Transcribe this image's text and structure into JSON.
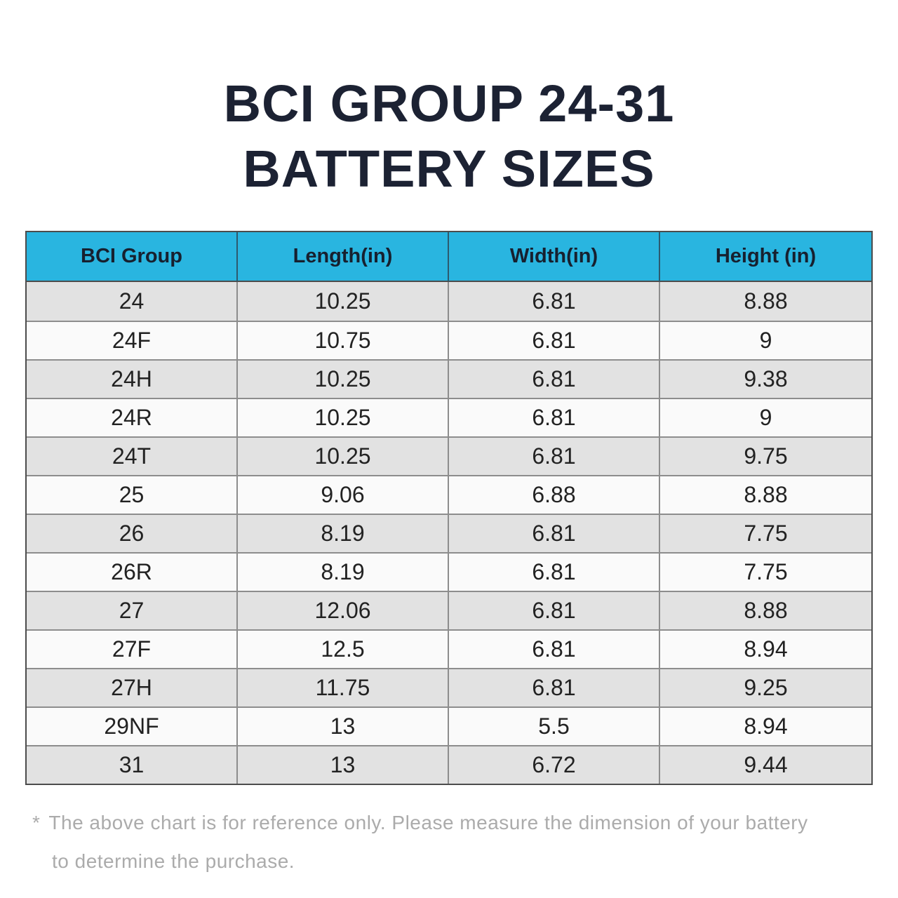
{
  "title": {
    "line1": "BCI GROUP 24-31",
    "line2": "BATTERY SIZES"
  },
  "chart_data": {
    "type": "table",
    "title": "BCI GROUP 24-31 BATTERY SIZES",
    "columns": [
      "BCI Group",
      "Length(in)",
      "Width(in)",
      "Height (in)"
    ],
    "rows": [
      [
        "24",
        10.25,
        6.81,
        8.88
      ],
      [
        "24F",
        10.75,
        6.81,
        9
      ],
      [
        "24H",
        10.25,
        6.81,
        9.38
      ],
      [
        "24R",
        10.25,
        6.81,
        9
      ],
      [
        "24T",
        10.25,
        6.81,
        9.75
      ],
      [
        "25",
        9.06,
        6.88,
        8.88
      ],
      [
        "26",
        8.19,
        6.81,
        7.75
      ],
      [
        "26R",
        8.19,
        6.81,
        7.75
      ],
      [
        "27",
        12.06,
        6.81,
        8.88
      ],
      [
        "27F",
        12.5,
        6.81,
        8.94
      ],
      [
        "27H",
        11.75,
        6.81,
        9.25
      ],
      [
        "29NF",
        13,
        5.5,
        8.94
      ],
      [
        "31",
        13,
        6.72,
        9.44
      ]
    ],
    "layout": {
      "striped_rows": true,
      "header_position": "top"
    }
  },
  "footnote": {
    "marker": "*",
    "line1": "The above chart is for reference only. Please measure the dimension of your battery",
    "line2": "to determine the purchase."
  },
  "colors": {
    "header_bg": "#29b5e0",
    "row_alt_bg": "#e2e2e2",
    "row_bg": "#fafafa",
    "title_text": "#1c2233",
    "footnote_text": "#ababab",
    "border_outer": "#4c4c4c",
    "border_inner": "#8d8d8d",
    "header_divider": "#2d5a6e",
    "cell_text": "#222222"
  }
}
